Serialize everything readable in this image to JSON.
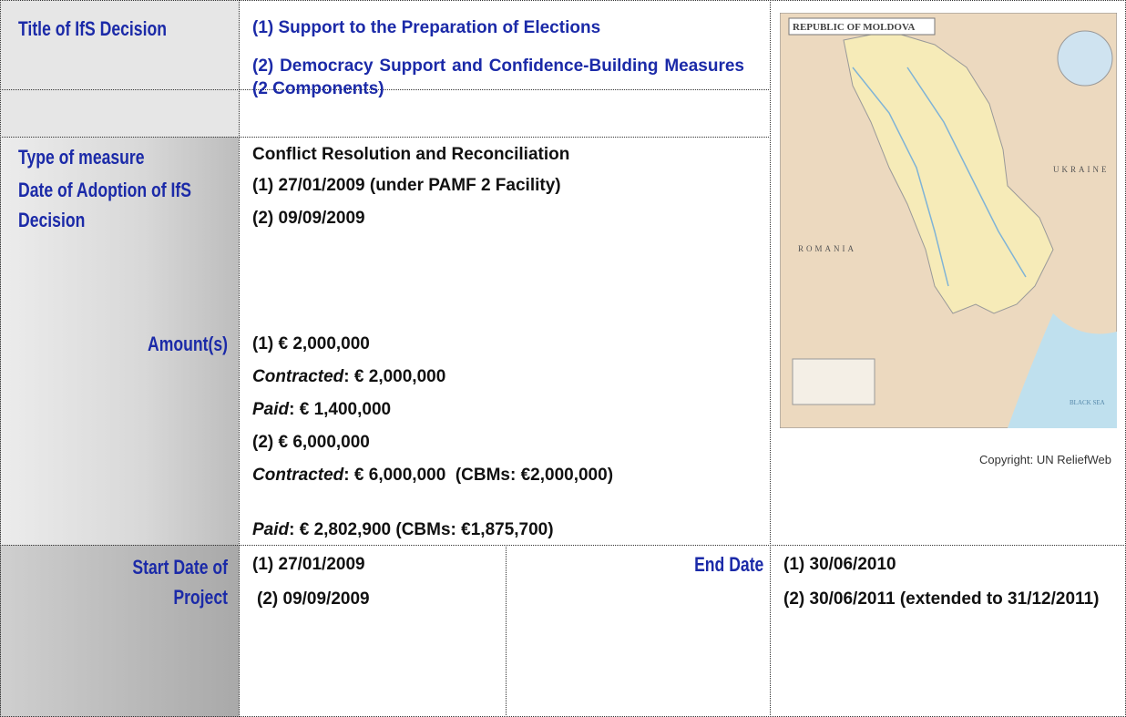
{
  "title_of_decision": {
    "label": "Title of IfS Decision",
    "values": [
      "(1) Support to the Preparation of Elections",
      "(2) Democracy Support and Confidence-Building Measures (2 Components)"
    ]
  },
  "type_of_measure": {
    "label": "Type of measure",
    "value": "Conflict Resolution and Reconciliation"
  },
  "date_of_adoption": {
    "label": "Date of Adoption of IfS Decision",
    "values": [
      "(1) 27/01/2009 (under PAMF 2 Facility)",
      "(2) 09/09/2009"
    ]
  },
  "amounts": {
    "label": "Amount(s)",
    "items": [
      {
        "text": "(1) € 2,000,000"
      },
      {
        "term": "Contracted",
        "text": ": € 2,000,000"
      },
      {
        "term": "Paid",
        "text": ": € 1,400,000"
      },
      {
        "text": "(2) € 6,000,000"
      },
      {
        "term": "Contracted",
        "text": ": € 6,000,000  (CBMs: €2,000,000)"
      },
      {
        "term": "Paid",
        "text": ": € 2,802,900 (CBMs: €1,875,700)"
      }
    ]
  },
  "start_date": {
    "label": "Start Date of Project",
    "values": [
      "(1) 27/01/2009",
      "(2) 09/09/2009"
    ]
  },
  "end_date": {
    "label": "End Date",
    "values": [
      "(1) 30/06/2010",
      "(2) 30/06/2011 (extended to 31/12/2011)"
    ]
  },
  "map": {
    "title": "REPUBLIC OF MOLDOVA",
    "labels": [
      "UKRAINE",
      "ROMANIA",
      "BLACK SEA"
    ],
    "caption": "Copyright: UN ReliefWeb"
  }
}
